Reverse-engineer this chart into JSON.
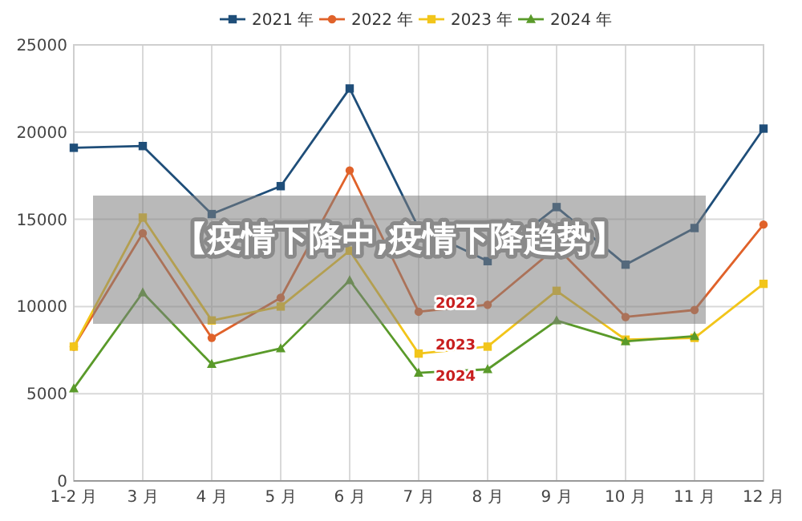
{
  "chart_data": {
    "type": "line",
    "categories": [
      "1-2 月",
      "3 月",
      "4 月",
      "5 月",
      "6 月",
      "7 月",
      "8 月",
      "9 月",
      "10 月",
      "11 月",
      "12 月"
    ],
    "series": [
      {
        "name": "2021 年",
        "color": "#1f4e79",
        "marker": "square",
        "values": [
          19100,
          19200,
          15300,
          16900,
          22500,
          14500,
          12600,
          15700,
          12400,
          14500,
          20200
        ]
      },
      {
        "name": "2022 年",
        "color": "#e0622a",
        "marker": "circle",
        "values": [
          7700,
          14200,
          8200,
          10500,
          17800,
          9700,
          10100,
          13400,
          9400,
          9800,
          14700
        ]
      },
      {
        "name": "2023 年",
        "color": "#f2c51a",
        "marker": "square",
        "values": [
          7700,
          15100,
          9200,
          10000,
          13200,
          7300,
          7700,
          10900,
          8100,
          8200,
          11300
        ]
      },
      {
        "name": "2024 年",
        "color": "#5a9a2a",
        "marker": "triangle",
        "values": [
          5300,
          10800,
          6700,
          7600,
          11500,
          6200,
          6400,
          9200,
          8000,
          8300,
          null
        ]
      }
    ],
    "ylim": [
      0,
      25000
    ],
    "yticks": [
      0,
      5000,
      10000,
      15000,
      20000,
      25000
    ],
    "grid": true,
    "legend": "top",
    "line_style": "solid",
    "annotations": [
      "【疫情下降中,疫情下降趋势】",
      {
        "text": "2022",
        "x": "8 月",
        "y": 10300
      },
      {
        "text": "2023",
        "x": "8 月",
        "y": 7900
      },
      {
        "text": "2024",
        "x": "8 月",
        "y": 6100
      }
    ]
  }
}
